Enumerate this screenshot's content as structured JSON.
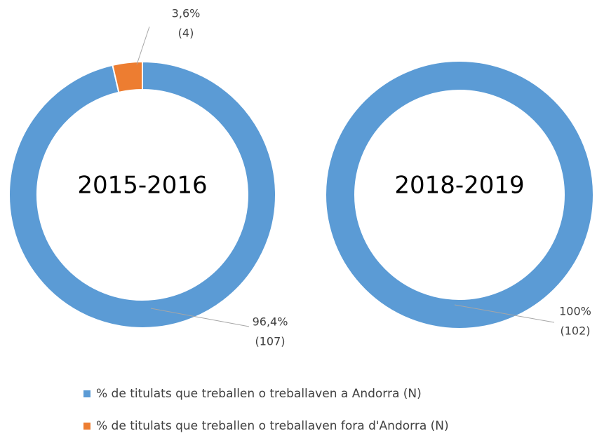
{
  "chart_data": [
    {
      "type": "pie",
      "title": "2015-2016",
      "categories": [
        "% de titulats que treballen o treballaven a Andorra (N)",
        "% de titulats que treballen o treballaven fora d'Andorra (N)"
      ],
      "values": [
        96.4,
        3.6
      ],
      "value_labels": [
        "96,4%",
        "3,6%"
      ],
      "counts": [
        107,
        4
      ],
      "count_labels": [
        "(107)",
        "(4)"
      ],
      "colors": [
        "#5b9bd5",
        "#ed7d31"
      ]
    },
    {
      "type": "pie",
      "title": "2018-2019",
      "values": [
        100
      ],
      "value_labels": [
        "100%"
      ],
      "counts": [
        102
      ],
      "count_labels": [
        "(102)"
      ],
      "colors": [
        "#5b9bd5"
      ]
    }
  ]
}
